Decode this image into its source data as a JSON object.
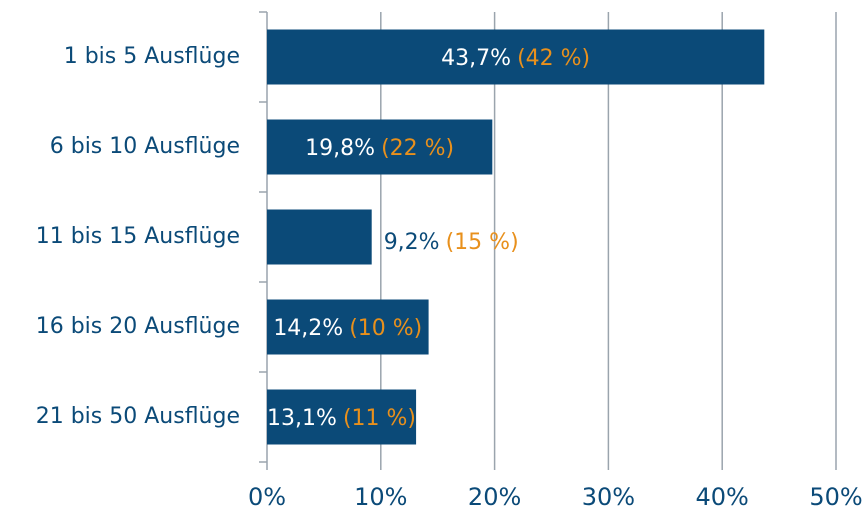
{
  "chart_data": {
    "type": "bar",
    "orientation": "horizontal",
    "categories": [
      "1 bis 5 Ausflüge",
      "6 bis 10 Ausflüge",
      "11 bis 15 Ausflüge",
      "16 bis 20 Ausflüge",
      "21 bis 50 Ausflüge"
    ],
    "values": [
      43.7,
      19.8,
      9.2,
      14.2,
      13.1
    ],
    "value_labels": [
      "43,7%",
      "19,8%",
      "9,2%",
      "14,2%",
      "13,1%"
    ],
    "reference_values": [
      42,
      22,
      15,
      10,
      11
    ],
    "reference_labels": [
      "(42 %)",
      "(22 %)",
      "(15 %)",
      "(10 %)",
      "(11 %)"
    ],
    "color": "#0b4a78",
    "reference_color": "#e8901c",
    "xlim": [
      0,
      50
    ],
    "xticks": [
      {
        "value": 0,
        "label": "0%"
      },
      {
        "value": 10,
        "label": "10%"
      },
      {
        "value": 20,
        "label": "20%"
      },
      {
        "value": 30,
        "label": "30%"
      },
      {
        "value": 40,
        "label": "40%"
      },
      {
        "value": 50,
        "label": "50%"
      }
    ],
    "grid": true
  }
}
